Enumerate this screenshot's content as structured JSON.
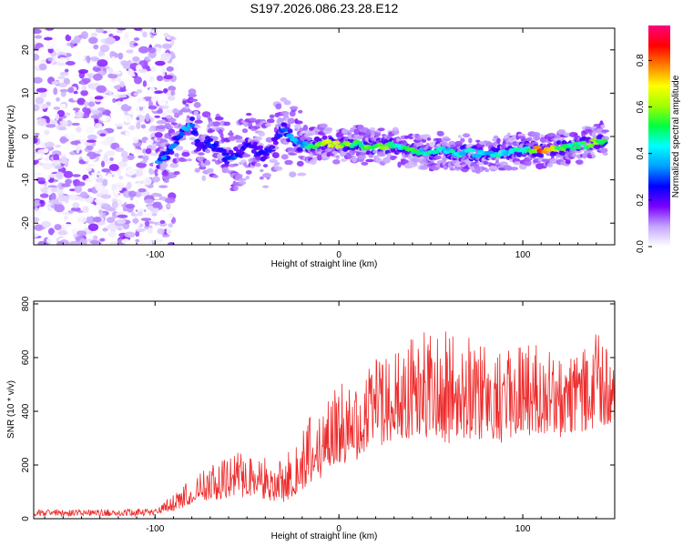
{
  "title": "S197.2026.086.23.28.E12",
  "colors": {
    "snr_line": "#ee2b2b",
    "axis": "#000000"
  },
  "chart_data": [
    {
      "type": "heatmap",
      "xlabel": "Height of straight line (km)",
      "ylabel": "Frequency (Hz)",
      "xlim": [
        -166,
        150
      ],
      "ylim": [
        -25,
        25
      ],
      "x_ticks": [
        -100,
        0,
        100
      ],
      "x_tick_labels": [
        "-100",
        "0",
        "100"
      ],
      "y_ticks": [
        -20,
        -10,
        0,
        10,
        20
      ],
      "y_tick_labels": [
        "-20",
        "-10",
        "0",
        "10",
        "20"
      ],
      "colorbar": {
        "label": "Normalized spectral amplitude",
        "range": [
          0,
          0.95
        ],
        "ticks": [
          0.0,
          0.2,
          0.4,
          0.6,
          0.8
        ],
        "tick_labels": [
          "0.0",
          "0.2",
          "0.4",
          "0.6",
          "0.8"
        ],
        "colormap": [
          "#ffffff",
          "#c4a6ff",
          "#7a00ff",
          "#0000ff",
          "#00a0ff",
          "#00ffff",
          "#00ff40",
          "#a0ff00",
          "#ffff00",
          "#ff8000",
          "#ff0000",
          "#ff0080"
        ]
      },
      "noise_region_x": [
        -166,
        -90
      ],
      "signal_trace": [
        {
          "x": -98,
          "y": -6,
          "v": 0.32
        },
        {
          "x": -92,
          "y": -3,
          "v": 0.28
        },
        {
          "x": -85,
          "y": 1,
          "v": 0.33
        },
        {
          "x": -80,
          "y": 3,
          "v": 0.36
        },
        {
          "x": -75,
          "y": -3,
          "v": 0.2
        },
        {
          "x": -70,
          "y": -1,
          "v": 0.28
        },
        {
          "x": -65,
          "y": -3,
          "v": 0.22
        },
        {
          "x": -60,
          "y": -5,
          "v": 0.3
        },
        {
          "x": -55,
          "y": -4,
          "v": 0.26
        },
        {
          "x": -50,
          "y": -2,
          "v": 0.22
        },
        {
          "x": -45,
          "y": -3,
          "v": 0.2
        },
        {
          "x": -40,
          "y": -5,
          "v": 0.24
        },
        {
          "x": -35,
          "y": -1,
          "v": 0.2
        },
        {
          "x": -30,
          "y": 2,
          "v": 0.3
        },
        {
          "x": -25,
          "y": -1,
          "v": 0.35
        },
        {
          "x": -20,
          "y": -2,
          "v": 0.3
        },
        {
          "x": -15,
          "y": -2,
          "v": 0.5
        },
        {
          "x": -10,
          "y": -1.5,
          "v": 0.55
        },
        {
          "x": -5,
          "y": -1.5,
          "v": 0.65
        },
        {
          "x": 0,
          "y": -2,
          "v": 0.6
        },
        {
          "x": 5,
          "y": -2,
          "v": 0.55
        },
        {
          "x": 10,
          "y": -1.5,
          "v": 0.5
        },
        {
          "x": 15,
          "y": -2.5,
          "v": 0.52
        },
        {
          "x": 20,
          "y": -2,
          "v": 0.55
        },
        {
          "x": 25,
          "y": -2.5,
          "v": 0.6
        },
        {
          "x": 30,
          "y": -2,
          "v": 0.5
        },
        {
          "x": 35,
          "y": -3,
          "v": 0.45
        },
        {
          "x": 40,
          "y": -3,
          "v": 0.5
        },
        {
          "x": 45,
          "y": -3.5,
          "v": 0.42
        },
        {
          "x": 50,
          "y": -4,
          "v": 0.45
        },
        {
          "x": 55,
          "y": -3,
          "v": 0.4
        },
        {
          "x": 60,
          "y": -3.5,
          "v": 0.42
        },
        {
          "x": 65,
          "y": -4,
          "v": 0.44
        },
        {
          "x": 70,
          "y": -3.5,
          "v": 0.4
        },
        {
          "x": 75,
          "y": -4,
          "v": 0.42
        },
        {
          "x": 80,
          "y": -4,
          "v": 0.38
        },
        {
          "x": 85,
          "y": -4,
          "v": 0.45
        },
        {
          "x": 90,
          "y": -3.5,
          "v": 0.42
        },
        {
          "x": 95,
          "y": -3.5,
          "v": 0.4
        },
        {
          "x": 100,
          "y": -3,
          "v": 0.45
        },
        {
          "x": 105,
          "y": -3,
          "v": 0.55
        },
        {
          "x": 110,
          "y": -3,
          "v": 0.85
        },
        {
          "x": 115,
          "y": -3,
          "v": 0.7
        },
        {
          "x": 120,
          "y": -2.5,
          "v": 0.55
        },
        {
          "x": 125,
          "y": -2.5,
          "v": 0.5
        },
        {
          "x": 130,
          "y": -2,
          "v": 0.45
        },
        {
          "x": 135,
          "y": -2,
          "v": 0.55
        },
        {
          "x": 140,
          "y": -1,
          "v": 0.6
        },
        {
          "x": 145,
          "y": -1,
          "v": 0.5
        }
      ]
    },
    {
      "type": "line",
      "xlabel": "Height of straight line (km)",
      "ylabel": "SNR (10 * v/v)",
      "xlim": [
        -166,
        150
      ],
      "ylim": [
        0,
        810
      ],
      "x_ticks": [
        -100,
        0,
        100
      ],
      "x_tick_labels": [
        "-100",
        "0",
        "100"
      ],
      "y_ticks": [
        0,
        200,
        400,
        600,
        800
      ],
      "y_tick_labels": [
        "0",
        "200",
        "400",
        "600",
        "800"
      ],
      "envelope": {
        "x": [
          -166,
          -120,
          -100,
          -90,
          -85,
          -80,
          -70,
          -60,
          -50,
          -40,
          -30,
          -20,
          -10,
          0,
          10,
          20,
          30,
          40,
          50,
          60,
          70,
          80,
          90,
          100,
          110,
          120,
          130,
          140,
          150
        ],
        "base": [
          10,
          10,
          12,
          25,
          40,
          55,
          70,
          75,
          80,
          70,
          60,
          100,
          150,
          200,
          220,
          260,
          280,
          300,
          290,
          280,
          300,
          290,
          280,
          300,
          320,
          300,
          320,
          340,
          360
        ],
        "peak": [
          35,
          35,
          40,
          90,
          120,
          170,
          200,
          230,
          260,
          250,
          230,
          340,
          430,
          500,
          520,
          600,
          620,
          700,
          720,
          700,
          680,
          700,
          640,
          660,
          650,
          600,
          600,
          720,
          560
        ]
      }
    }
  ]
}
